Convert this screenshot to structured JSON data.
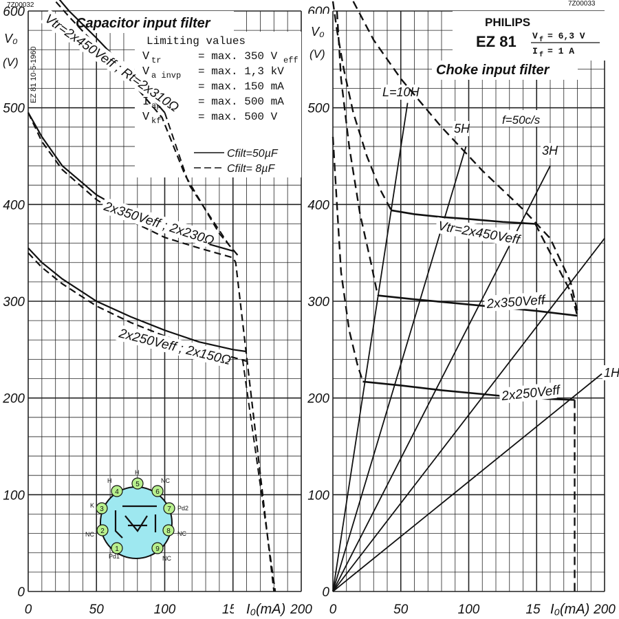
{
  "chart_data": [
    {
      "type": "line",
      "title": "Capacitor input filter",
      "doc_code": "7Z00032",
      "side_stamp": "EZ 81 10-5-1960",
      "xlabel": "I₀(mA)",
      "ylabel": "V₀",
      "yunit": "(V)",
      "xlim": [
        0,
        200
      ],
      "ylim": [
        0,
        600
      ],
      "xticks": [
        0,
        50,
        100,
        150,
        200
      ],
      "yticks": [
        0,
        100,
        200,
        300,
        400,
        500,
        600
      ],
      "grid": true,
      "limits": {
        "heading": "Limiting values",
        "rows": [
          {
            "sym": "V",
            "sub": "tr",
            "val": "= max. 350 V",
            "unit_sub": "eff"
          },
          {
            "sym": "V",
            "sub": "a invp",
            "val": "= max. 1,3  kV",
            "unit_sub": ""
          },
          {
            "sym": "I",
            "sub": "o",
            "val": "= max. 150 mA",
            "unit_sub": ""
          },
          {
            "sym": "I",
            "sub": "ap",
            "val": "= max. 500 mA",
            "unit_sub": ""
          },
          {
            "sym": "V",
            "sub": "kf",
            "val": "= max. 500 V",
            "unit_sub": ""
          }
        ]
      },
      "legend": [
        {
          "label": "Cfilt=50µF",
          "style": "solid"
        },
        {
          "label": "Cfilt= 8µF",
          "style": "dashed"
        }
      ],
      "series": [
        {
          "label": "Vtr=2x450Veff ; Rt=2x310Ω",
          "style": "solid",
          "x": [
            15,
            30,
            50,
            75,
            100
          ],
          "y": [
            625,
            600,
            572,
            535,
            495
          ]
        },
        {
          "label": "",
          "style": "dashed",
          "x": [
            15,
            30,
            50,
            75,
            98,
            115,
            140,
            155
          ],
          "y": [
            618,
            594,
            564,
            528,
            490,
            430,
            370,
            345
          ]
        },
        {
          "label": "2x350Veff ; 2x230Ω",
          "style": "solid",
          "x": [
            0,
            10,
            25,
            50,
            75,
            100,
            125,
            150
          ],
          "y": [
            495,
            470,
            440,
            410,
            390,
            373,
            362,
            352
          ]
        },
        {
          "label": "",
          "style": "dashed",
          "x": [
            0,
            10,
            25,
            50,
            75,
            100,
            125,
            150,
            152,
            180
          ],
          "y": [
            495,
            465,
            436,
            405,
            383,
            366,
            355,
            345,
            340,
            0
          ]
        },
        {
          "label": "2x250Veff ; 2x150Ω",
          "style": "solid",
          "x": [
            0,
            10,
            25,
            50,
            75,
            100,
            125,
            150,
            160
          ],
          "y": [
            355,
            340,
            323,
            300,
            284,
            270,
            258,
            250,
            248
          ]
        },
        {
          "label": "",
          "style": "dashed",
          "x": [
            0,
            10,
            25,
            50,
            75,
            100,
            125,
            150,
            160
          ],
          "y": [
            350,
            335,
            318,
            295,
            278,
            264,
            252,
            242,
            238
          ]
        }
      ],
      "pinout": {
        "pins": [
          {
            "n": "1",
            "name": "Pd1"
          },
          {
            "n": "2",
            "name": "NC"
          },
          {
            "n": "3",
            "name": "K"
          },
          {
            "n": "4",
            "name": "H"
          },
          {
            "n": "5",
            "name": "H"
          },
          {
            "n": "6",
            "name": "NC"
          },
          {
            "n": "7",
            "name": "Pd2"
          },
          {
            "n": "8",
            "name": "NC"
          },
          {
            "n": "9",
            "name": "NC"
          }
        ]
      }
    },
    {
      "type": "line",
      "title": "Choke input filter",
      "doc_code": "7Z00033",
      "brand": "PHILIPS",
      "model": "EZ 81",
      "spec_rows": [
        {
          "sym": "V",
          "sub": "f",
          "val": "= 6,3 V"
        },
        {
          "sym": "I",
          "sub": "f",
          "val": "=    1 A"
        }
      ],
      "freq_note": "f=50c/s",
      "xlabel": "I₀(mA)",
      "ylabel": "V₀",
      "yunit": "(V)",
      "xlim": [
        0,
        200
      ],
      "ylim": [
        0,
        600
      ],
      "xticks": [
        0,
        50,
        100,
        150,
        200
      ],
      "yticks": [
        0,
        100,
        200,
        300,
        400,
        500,
        600
      ],
      "grid": true,
      "choke_lines": [
        {
          "label": "L=10H",
          "x2": 55,
          "y2": 505
        },
        {
          "label": "5H",
          "x2": 98,
          "y2": 460
        },
        {
          "label": "3H",
          "x2": 160,
          "y2": 440
        },
        {
          "label": "",
          "x2": 200,
          "y2": 365
        },
        {
          "label": "1H",
          "x2": 198,
          "y2": 225
        }
      ],
      "series": [
        {
          "label": "Vtr=2x450Veff",
          "style": "solid",
          "x": [
            43,
            60,
            80,
            100,
            125,
            149
          ],
          "y": [
            394,
            390,
            387,
            385,
            382,
            380
          ]
        },
        {
          "label": "",
          "style": "dashed",
          "x": [
            149,
            160,
            175,
            180
          ],
          "y": [
            380,
            350,
            310,
            285
          ]
        },
        {
          "label": "2x350Veff",
          "style": "solid",
          "x": [
            33,
            60,
            90,
            120,
            150,
            180
          ],
          "y": [
            306,
            302,
            298,
            294,
            290,
            285
          ]
        },
        {
          "label": "2x250Veff",
          "style": "solid",
          "x": [
            22,
            50,
            80,
            110,
            140,
            178
          ],
          "y": [
            217,
            213,
            208,
            204,
            200,
            198
          ]
        },
        {
          "label": "",
          "style": "dashed",
          "x": [
            0,
            3,
            8,
            15,
            25,
            35,
            43
          ],
          "y": [
            610,
            580,
            540,
            495,
            450,
            415,
            394
          ]
        },
        {
          "label": "",
          "style": "dashed",
          "x": [
            3,
            6,
            12,
            20,
            28,
            33
          ],
          "y": [
            600,
            530,
            460,
            390,
            340,
            306
          ]
        },
        {
          "label": "",
          "style": "dashed",
          "x": [
            0,
            3,
            6,
            12,
            18,
            22
          ],
          "y": [
            470,
            400,
            330,
            270,
            235,
            217
          ]
        },
        {
          "label": "",
          "style": "dashed",
          "x": [
            15,
            30,
            50,
            80,
            110,
            140,
            160,
            175,
            180
          ],
          "y": [
            610,
            570,
            530,
            480,
            435,
            395,
            365,
            320,
            290
          ]
        },
        {
          "label": "",
          "style": "dashed",
          "x": [
            178,
            178
          ],
          "y": [
            198,
            0
          ]
        }
      ]
    }
  ]
}
